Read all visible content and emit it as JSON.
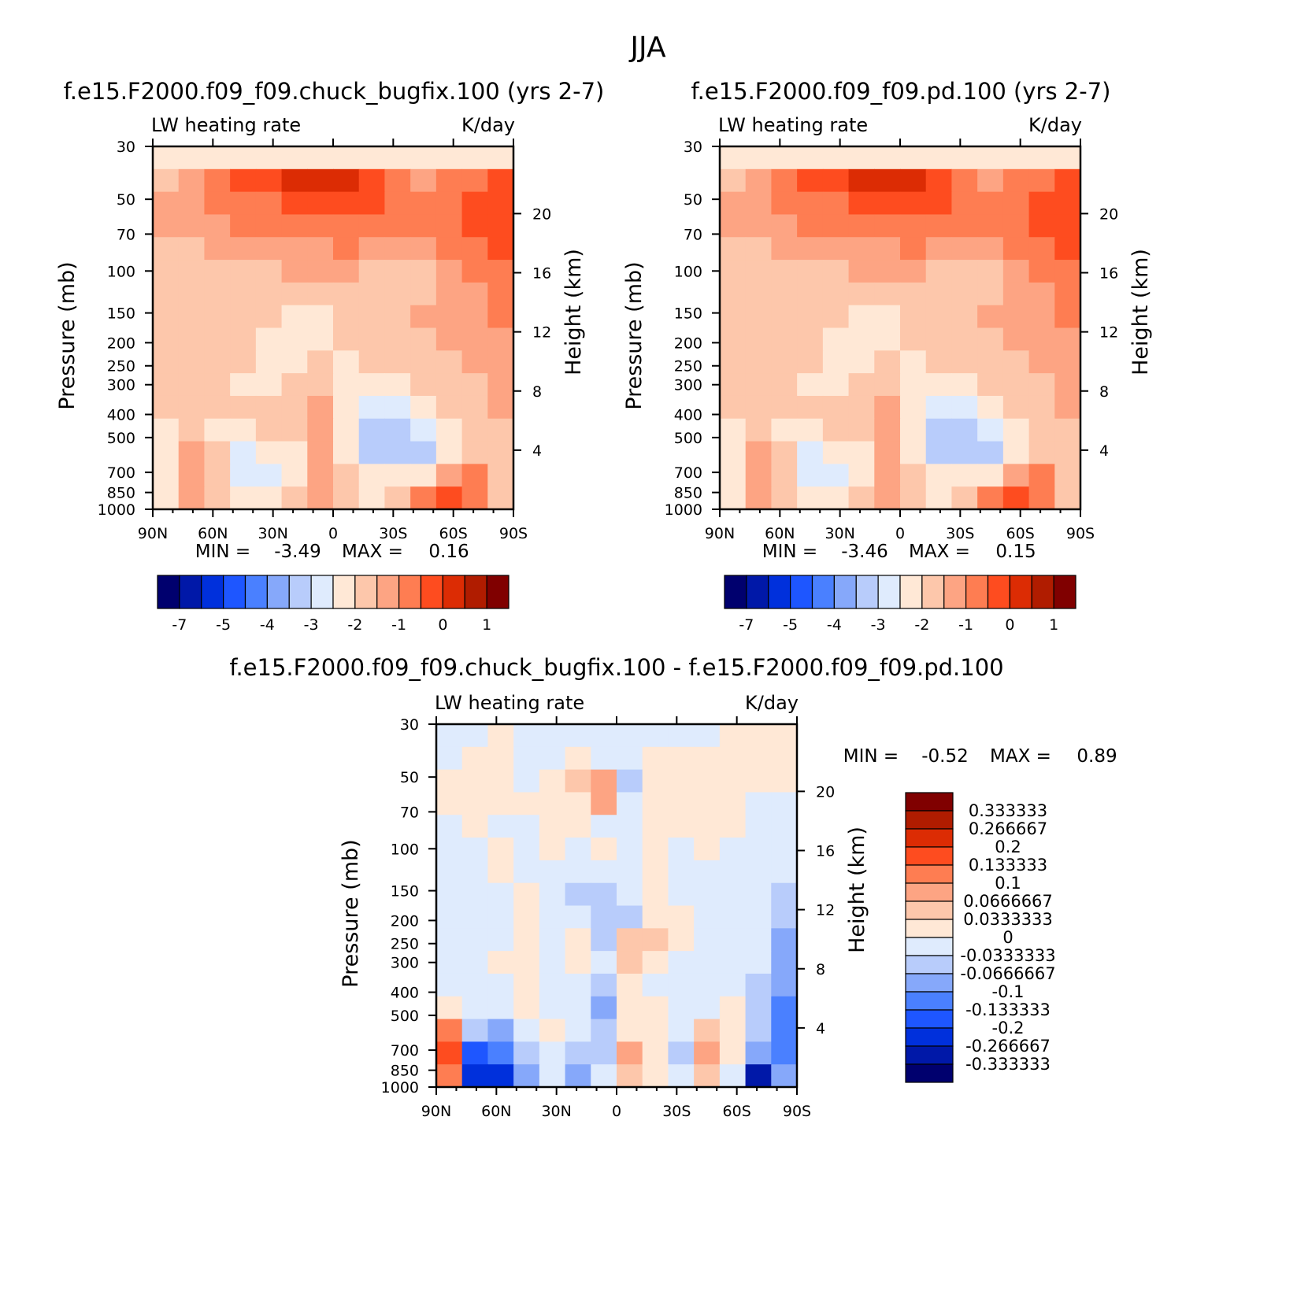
{
  "figure": {
    "title": "JJA"
  },
  "palettes": {
    "abs": [
      "#00006e",
      "#0018a8",
      "#0030dc",
      "#1e56ff",
      "#4a80ff",
      "#86a8fa",
      "#b8ccfb",
      "#dfebfd",
      "#ffe8d6",
      "#fdc7ab",
      "#fda483",
      "#fe7d52",
      "#fe4c1f",
      "#dc2c04",
      "#b01c00",
      "#800000"
    ],
    "diff": [
      "#800000",
      "#b01c00",
      "#dc2c04",
      "#fe4c1f",
      "#fe7d52",
      "#fda483",
      "#fdc7ab",
      "#ffe8d6",
      "#dfebfd",
      "#b8ccfb",
      "#86a8fa",
      "#4a80ff",
      "#1e56ff",
      "#0030dc",
      "#0018a8",
      "#00006e"
    ]
  },
  "axes": {
    "pressure_ticks": [
      "30",
      "50",
      "70",
      "100",
      "150",
      "200",
      "250",
      "300",
      "400",
      "500",
      "700",
      "850",
      "1000"
    ],
    "height_ticks": [
      "20",
      "16",
      "12",
      "8",
      "4"
    ],
    "lat_ticks": [
      "90N",
      "60N",
      "30N",
      "0",
      "30S",
      "60S",
      "90S"
    ],
    "ylabel": "Pressure (mb)",
    "y2label": "Height (km)"
  },
  "chart_data": [
    {
      "type": "heatmap",
      "title": "f.e15.F2000.f09_f09.chuck_bugfix.100 (yrs 2-7)",
      "left_subtitle": "LW heating rate",
      "right_subtitle": "K/day",
      "x": [
        "90N",
        "60N",
        "30N",
        "0",
        "30S",
        "60S",
        "90S"
      ],
      "ylim": [
        1000,
        30
      ],
      "stats": {
        "min_label": "MIN =",
        "min": "-3.49",
        "max_label": "MAX =",
        "max": "0.16"
      },
      "colorbar_labels": [
        "-7",
        "-5",
        "-4",
        "-3",
        "-2",
        "-1",
        "0",
        "1"
      ],
      "field_levels": [
        [
          8,
          8,
          8,
          8,
          8,
          8,
          8,
          8,
          8,
          8,
          8,
          8,
          8,
          8
        ],
        [
          9,
          10,
          11,
          12,
          12,
          13,
          13,
          13,
          12,
          11,
          10,
          11,
          11,
          12
        ],
        [
          10,
          10,
          11,
          11,
          11,
          12,
          12,
          12,
          12,
          11,
          11,
          11,
          12,
          12
        ],
        [
          10,
          10,
          10,
          11,
          11,
          11,
          11,
          11,
          11,
          11,
          11,
          11,
          12,
          12
        ],
        [
          9,
          9,
          10,
          10,
          10,
          10,
          10,
          11,
          10,
          10,
          10,
          11,
          11,
          12
        ],
        [
          9,
          9,
          9,
          9,
          9,
          10,
          10,
          10,
          9,
          9,
          9,
          10,
          11,
          11
        ],
        [
          9,
          9,
          9,
          9,
          9,
          9,
          9,
          9,
          9,
          9,
          9,
          10,
          10,
          11
        ],
        [
          9,
          9,
          9,
          9,
          9,
          8,
          8,
          9,
          9,
          9,
          10,
          10,
          10,
          11
        ],
        [
          9,
          9,
          9,
          9,
          8,
          8,
          8,
          9,
          9,
          9,
          9,
          10,
          10,
          10
        ],
        [
          9,
          9,
          9,
          9,
          8,
          8,
          9,
          8,
          9,
          9,
          9,
          9,
          10,
          10
        ],
        [
          9,
          9,
          9,
          8,
          8,
          9,
          9,
          8,
          8,
          8,
          9,
          9,
          9,
          10
        ],
        [
          9,
          9,
          9,
          9,
          9,
          9,
          10,
          8,
          7,
          7,
          8,
          9,
          9,
          10
        ],
        [
          8,
          9,
          8,
          8,
          9,
          9,
          10,
          8,
          6,
          6,
          7,
          8,
          9,
          9
        ],
        [
          8,
          10,
          9,
          7,
          8,
          8,
          10,
          8,
          6,
          6,
          6,
          8,
          9,
          9
        ],
        [
          8,
          10,
          9,
          7,
          7,
          8,
          10,
          9,
          8,
          8,
          8,
          10,
          11,
          9
        ],
        [
          8,
          10,
          9,
          8,
          8,
          9,
          10,
          9,
          8,
          9,
          11,
          12,
          11,
          9
        ]
      ]
    },
    {
      "type": "heatmap",
      "title": "f.e15.F2000.f09_f09.pd.100 (yrs 2-7)",
      "left_subtitle": "LW heating rate",
      "right_subtitle": "K/day",
      "x": [
        "90N",
        "60N",
        "30N",
        "0",
        "30S",
        "60S",
        "90S"
      ],
      "ylim": [
        1000,
        30
      ],
      "stats": {
        "min_label": "MIN =",
        "min": "-3.46",
        "max_label": "MAX =",
        "max": "0.15"
      },
      "colorbar_labels": [
        "-7",
        "-5",
        "-4",
        "-3",
        "-2",
        "-1",
        "0",
        "1"
      ],
      "field_levels": [
        [
          8,
          8,
          8,
          8,
          8,
          8,
          8,
          8,
          8,
          8,
          8,
          8,
          8,
          8
        ],
        [
          9,
          10,
          11,
          12,
          12,
          13,
          13,
          13,
          12,
          11,
          10,
          11,
          11,
          12
        ],
        [
          10,
          10,
          11,
          11,
          11,
          12,
          12,
          12,
          12,
          11,
          11,
          11,
          12,
          12
        ],
        [
          10,
          10,
          10,
          11,
          11,
          11,
          11,
          11,
          11,
          11,
          11,
          11,
          12,
          12
        ],
        [
          9,
          9,
          10,
          10,
          10,
          10,
          10,
          11,
          10,
          10,
          10,
          11,
          11,
          12
        ],
        [
          9,
          9,
          9,
          9,
          9,
          10,
          10,
          10,
          9,
          9,
          9,
          10,
          11,
          11
        ],
        [
          9,
          9,
          9,
          9,
          9,
          9,
          9,
          9,
          9,
          9,
          9,
          10,
          10,
          11
        ],
        [
          9,
          9,
          9,
          9,
          9,
          8,
          8,
          9,
          9,
          9,
          10,
          10,
          10,
          11
        ],
        [
          9,
          9,
          9,
          9,
          8,
          8,
          8,
          9,
          9,
          9,
          9,
          10,
          10,
          10
        ],
        [
          9,
          9,
          9,
          9,
          8,
          8,
          9,
          8,
          9,
          9,
          9,
          9,
          10,
          10
        ],
        [
          9,
          9,
          9,
          8,
          8,
          9,
          9,
          8,
          8,
          8,
          9,
          9,
          9,
          10
        ],
        [
          9,
          9,
          9,
          9,
          9,
          9,
          10,
          8,
          7,
          7,
          8,
          9,
          9,
          10
        ],
        [
          8,
          9,
          8,
          8,
          9,
          9,
          10,
          8,
          6,
          6,
          7,
          8,
          9,
          9
        ],
        [
          8,
          10,
          9,
          7,
          8,
          8,
          10,
          8,
          6,
          6,
          6,
          8,
          9,
          9
        ],
        [
          8,
          10,
          9,
          7,
          7,
          8,
          10,
          9,
          8,
          8,
          8,
          10,
          11,
          9
        ],
        [
          8,
          10,
          9,
          8,
          8,
          9,
          10,
          9,
          8,
          9,
          11,
          12,
          11,
          9
        ]
      ]
    },
    {
      "type": "heatmap",
      "title": "f.e15.F2000.f09_f09.chuck_bugfix.100 - f.e15.F2000.f09_f09.pd.100",
      "left_subtitle": "LW heating rate",
      "right_subtitle": "K/day",
      "x": [
        "90N",
        "60N",
        "30N",
        "0",
        "30S",
        "60S",
        "90S"
      ],
      "ylim": [
        1000,
        30
      ],
      "stats": {
        "min_label": "MIN =",
        "min": "-0.52",
        "max_label": "MAX =",
        "max": "0.89"
      },
      "colorbar_labels": [
        "0.333333",
        "0.266667",
        "0.2",
        "0.133333",
        "0.1",
        "0.0666667",
        "0.0333333",
        "0",
        "-0.0333333",
        "-0.0666667",
        "-0.1",
        "-0.133333",
        "-0.2",
        "-0.266667",
        "-0.333333"
      ],
      "field_levels": [
        [
          8,
          8,
          7,
          8,
          8,
          8,
          8,
          8,
          8,
          8,
          8,
          7,
          7,
          7
        ],
        [
          8,
          7,
          7,
          8,
          8,
          7,
          8,
          8,
          7,
          7,
          7,
          7,
          7,
          7
        ],
        [
          7,
          7,
          7,
          8,
          7,
          6,
          5,
          9,
          7,
          7,
          7,
          7,
          7,
          7
        ],
        [
          7,
          7,
          7,
          7,
          7,
          7,
          5,
          8,
          7,
          7,
          7,
          7,
          8,
          8
        ],
        [
          8,
          7,
          8,
          8,
          7,
          7,
          8,
          8,
          7,
          7,
          7,
          7,
          8,
          8
        ],
        [
          8,
          8,
          7,
          8,
          7,
          8,
          7,
          8,
          7,
          8,
          7,
          8,
          8,
          8
        ],
        [
          8,
          8,
          7,
          8,
          8,
          8,
          8,
          8,
          7,
          8,
          8,
          8,
          8,
          8
        ],
        [
          8,
          8,
          8,
          7,
          8,
          9,
          9,
          8,
          7,
          8,
          8,
          8,
          8,
          9
        ],
        [
          8,
          8,
          8,
          7,
          8,
          8,
          9,
          9,
          7,
          7,
          8,
          8,
          8,
          9
        ],
        [
          8,
          8,
          8,
          7,
          8,
          7,
          9,
          6,
          6,
          7,
          8,
          8,
          8,
          10
        ],
        [
          8,
          8,
          7,
          7,
          8,
          7,
          8,
          6,
          7,
          8,
          8,
          8,
          8,
          10
        ],
        [
          8,
          8,
          8,
          7,
          8,
          8,
          9,
          7,
          8,
          8,
          8,
          8,
          9,
          10
        ],
        [
          7,
          8,
          8,
          7,
          8,
          8,
          10,
          7,
          7,
          8,
          8,
          7,
          9,
          11
        ],
        [
          4,
          9,
          10,
          8,
          7,
          8,
          9,
          7,
          7,
          8,
          6,
          7,
          9,
          11
        ],
        [
          3,
          12,
          11,
          9,
          8,
          9,
          9,
          5,
          7,
          9,
          5,
          7,
          10,
          11
        ],
        [
          4,
          13,
          13,
          10,
          8,
          10,
          8,
          6,
          7,
          8,
          6,
          8,
          14,
          10
        ]
      ]
    }
  ]
}
